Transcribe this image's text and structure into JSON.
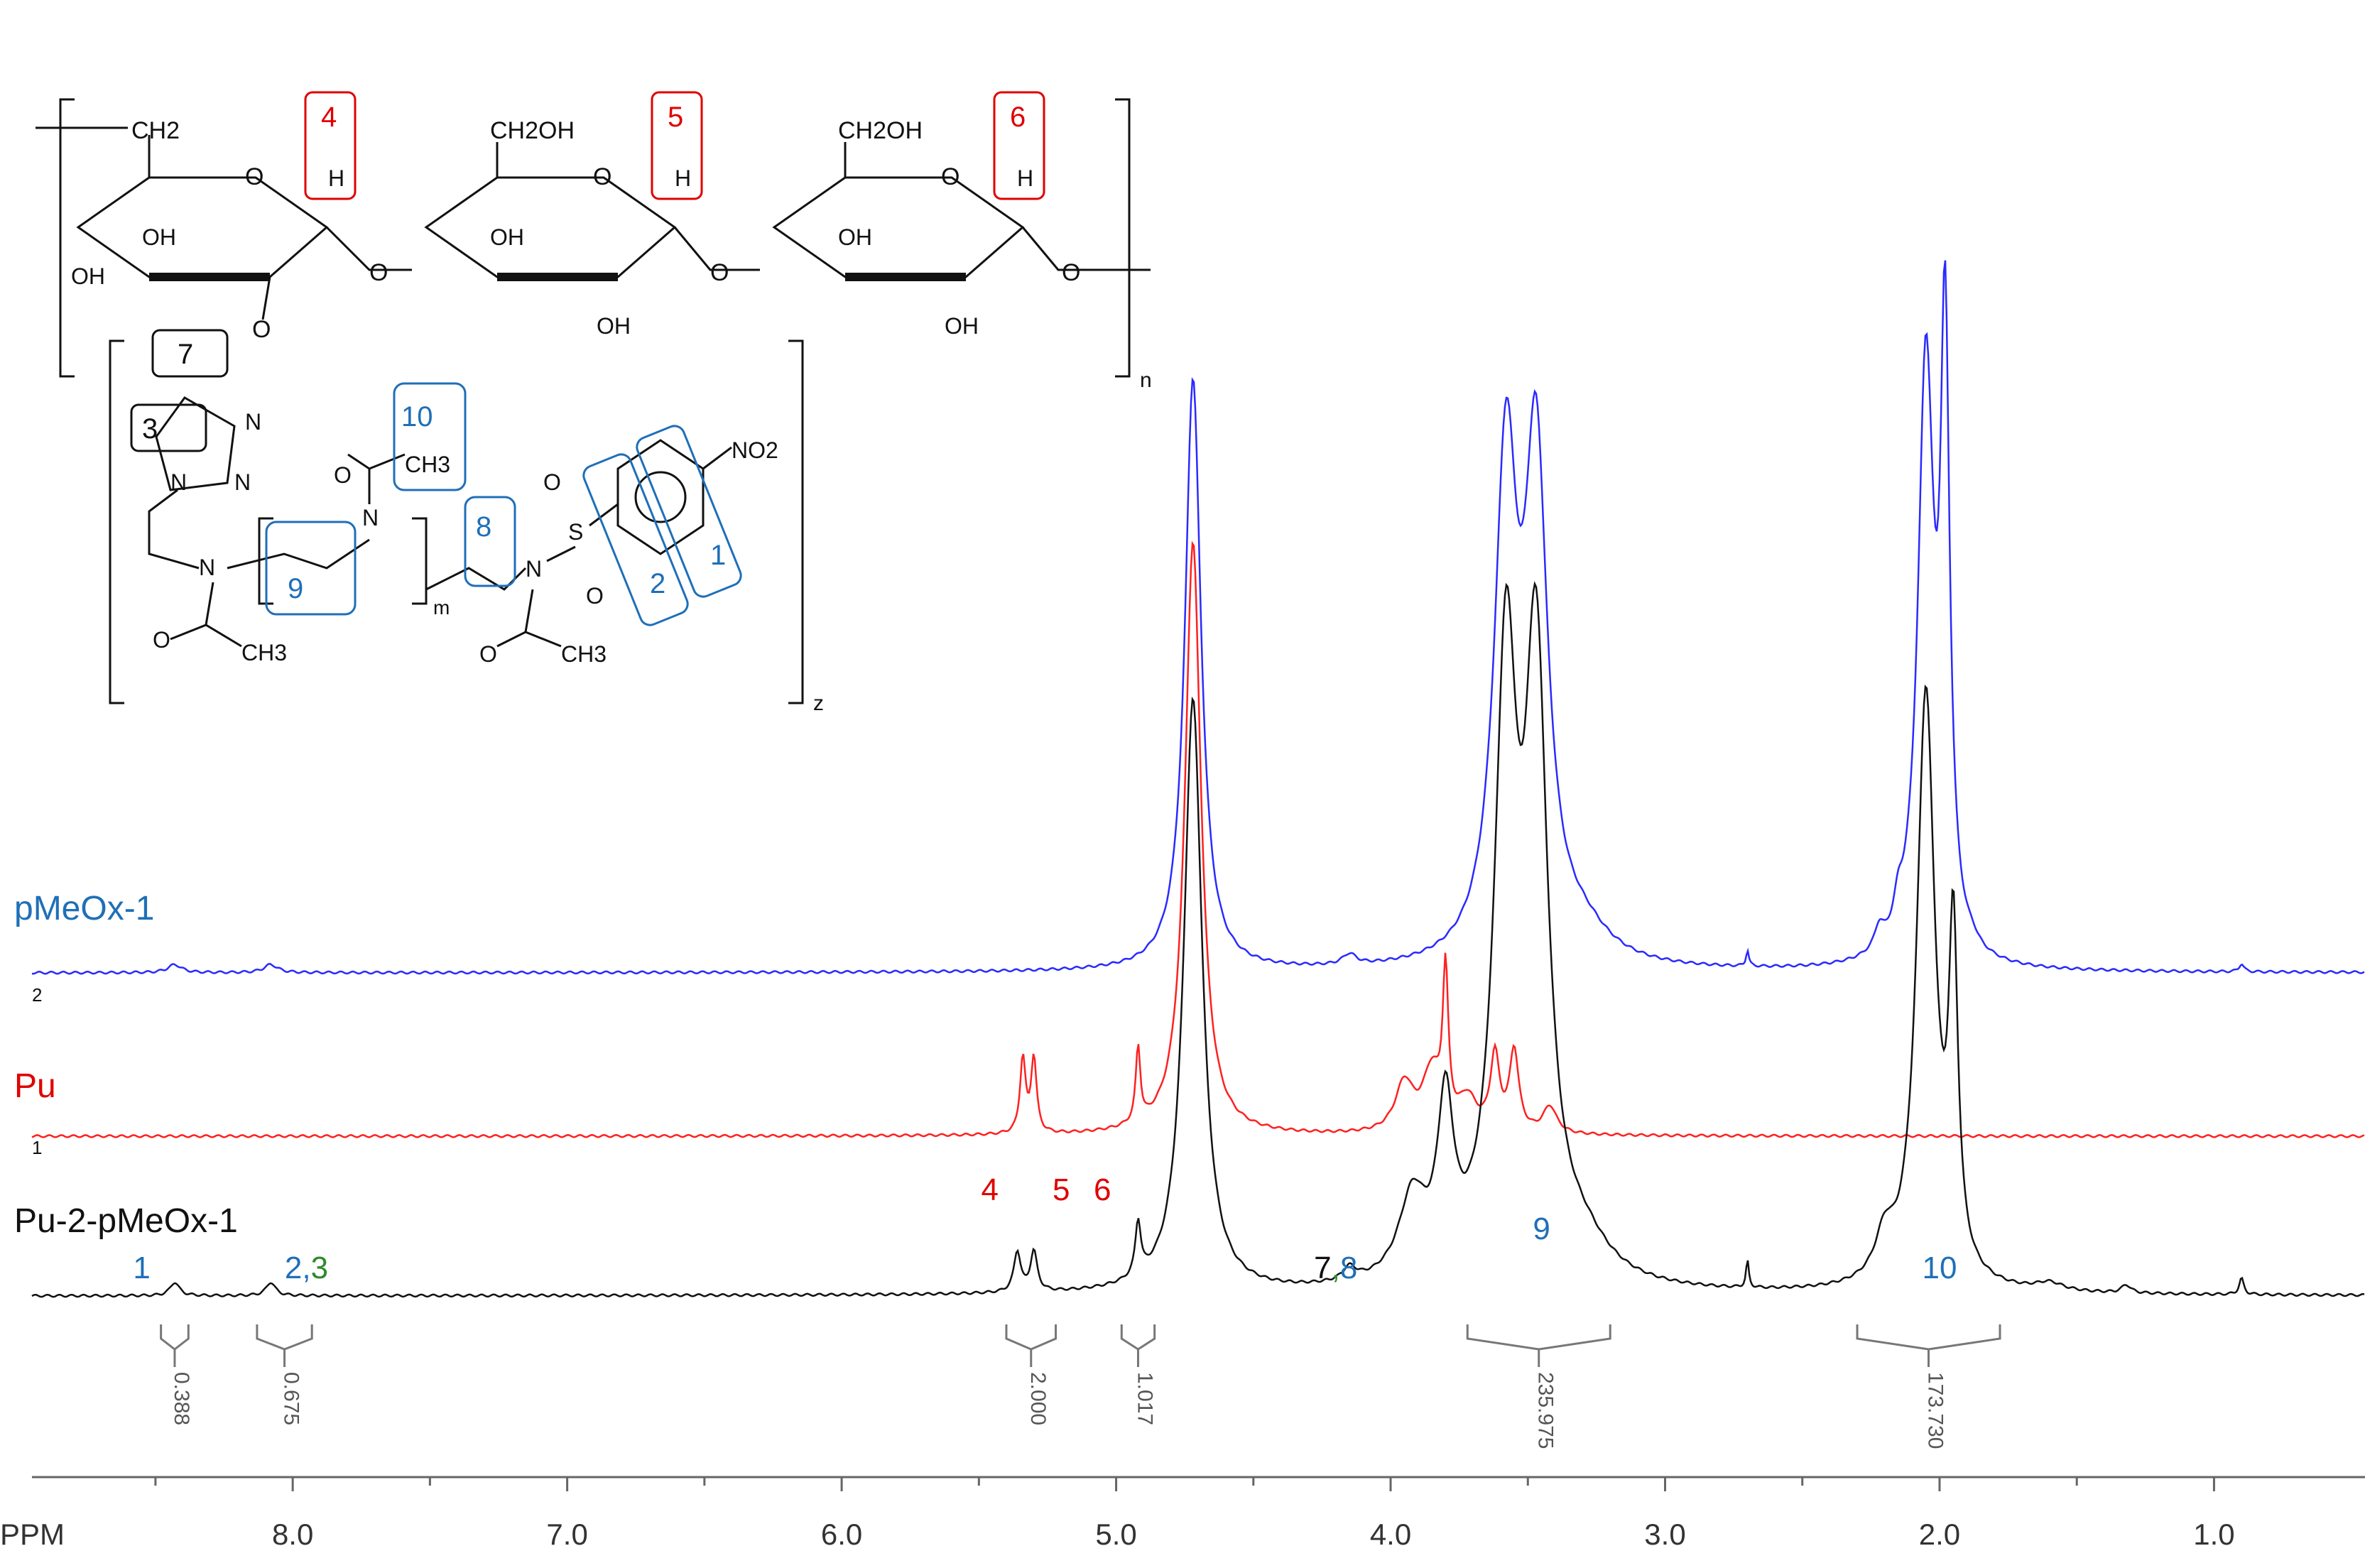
{
  "chart_data": {
    "type": "line",
    "xlabel": "PPM",
    "xlim": [
      8.95,
      0.45
    ],
    "x_reversed": true,
    "x_ticks": [
      {
        "value": 8.0,
        "label": "8.0"
      },
      {
        "value": 7.0,
        "label": "7.0"
      },
      {
        "value": 6.0,
        "label": "6.0"
      },
      {
        "value": 5.0,
        "label": "5.0"
      },
      {
        "value": 4.0,
        "label": "4.0"
      },
      {
        "value": 3.0,
        "label": "3.0"
      },
      {
        "value": 2.0,
        "label": "2.0"
      },
      {
        "value": 1.0,
        "label": "1.0"
      }
    ],
    "grid": false,
    "series": [
      {
        "name": "pMeOx-1",
        "trace_number": "2",
        "color": "#2a2aff",
        "label_color": "#1f6fb8",
        "peaks": [
          {
            "ppm": 8.43,
            "height": 0.03,
            "width": 0.03
          },
          {
            "ppm": 8.08,
            "height": 0.03,
            "width": 0.03
          },
          {
            "ppm": 4.72,
            "height": 2.2,
            "width": 0.035
          },
          {
            "ppm": 4.15,
            "height": 0.04,
            "width": 0.03
          },
          {
            "ppm": 3.58,
            "height": 1.8,
            "width": 0.05
          },
          {
            "ppm": 3.47,
            "height": 1.8,
            "width": 0.05
          },
          {
            "ppm": 3.3,
            "height": 0.1,
            "width": 0.12
          },
          {
            "ppm": 2.7,
            "height": 0.06,
            "width": 0.006
          },
          {
            "ppm": 2.22,
            "height": 0.08,
            "width": 0.02
          },
          {
            "ppm": 2.15,
            "height": 0.1,
            "width": 0.02
          },
          {
            "ppm": 2.05,
            "height": 2.2,
            "width": 0.035
          },
          {
            "ppm": 1.98,
            "height": 2.2,
            "width": 0.02
          },
          {
            "ppm": 1.88,
            "height": 0.02,
            "width": 0.02
          },
          {
            "ppm": 0.9,
            "height": 0.03,
            "width": 0.01
          }
        ]
      },
      {
        "name": "Pu",
        "trace_number": "1",
        "color": "#ff2020",
        "label_color": "#e00000",
        "peaks": [
          {
            "ppm": 5.34,
            "height": 0.28,
            "width": 0.012
          },
          {
            "ppm": 5.3,
            "height": 0.28,
            "width": 0.012
          },
          {
            "ppm": 4.92,
            "height": 0.28,
            "width": 0.01
          },
          {
            "ppm": 4.72,
            "height": 2.2,
            "width": 0.035
          },
          {
            "ppm": 3.95,
            "height": 0.18,
            "width": 0.04
          },
          {
            "ppm": 3.85,
            "height": 0.22,
            "width": 0.04
          },
          {
            "ppm": 3.8,
            "height": 0.55,
            "width": 0.012
          },
          {
            "ppm": 3.72,
            "height": 0.12,
            "width": 0.04
          },
          {
            "ppm": 3.62,
            "height": 0.28,
            "width": 0.02
          },
          {
            "ppm": 3.55,
            "height": 0.3,
            "width": 0.02
          },
          {
            "ppm": 3.42,
            "height": 0.1,
            "width": 0.03
          }
        ]
      },
      {
        "name": "Pu-2-pMeOx-1",
        "trace_number": "",
        "color": "#111111",
        "label_color": "#111111",
        "peaks": [
          {
            "ppm": 8.43,
            "height": 0.05,
            "width": 0.02
          },
          {
            "ppm": 8.08,
            "height": 0.05,
            "width": 0.02
          },
          {
            "ppm": 5.36,
            "height": 0.15,
            "width": 0.015
          },
          {
            "ppm": 5.3,
            "height": 0.15,
            "width": 0.015
          },
          {
            "ppm": 4.92,
            "height": 0.2,
            "width": 0.012
          },
          {
            "ppm": 4.72,
            "height": 2.2,
            "width": 0.04
          },
          {
            "ppm": 4.15,
            "height": 0.05,
            "width": 0.03
          },
          {
            "ppm": 3.92,
            "height": 0.3,
            "width": 0.06
          },
          {
            "ppm": 3.8,
            "height": 0.6,
            "width": 0.035
          },
          {
            "ppm": 3.58,
            "height": 2.2,
            "width": 0.05
          },
          {
            "ppm": 3.47,
            "height": 2.2,
            "width": 0.05
          },
          {
            "ppm": 3.3,
            "height": 0.12,
            "width": 0.12
          },
          {
            "ppm": 2.7,
            "height": 0.1,
            "width": 0.006
          },
          {
            "ppm": 2.2,
            "height": 0.15,
            "width": 0.04
          },
          {
            "ppm": 2.05,
            "height": 2.2,
            "width": 0.04
          },
          {
            "ppm": 1.95,
            "height": 1.2,
            "width": 0.02
          },
          {
            "ppm": 1.6,
            "height": 0.03,
            "width": 0.06
          },
          {
            "ppm": 1.32,
            "height": 0.03,
            "width": 0.02
          },
          {
            "ppm": 0.9,
            "height": 0.06,
            "width": 0.01
          }
        ]
      }
    ],
    "peak_labels": [
      {
        "ppm": 8.55,
        "parts": [
          {
            "text": "1",
            "color": "#1f6fb8"
          }
        ]
      },
      {
        "ppm": 7.95,
        "parts": [
          {
            "text": "2",
            "color": "#1f6fb8"
          },
          {
            "text": ",",
            "color": "#1f6fb8"
          },
          {
            "text": "3",
            "color": "#2e8b2e"
          }
        ]
      },
      {
        "ppm": 5.46,
        "parts": [
          {
            "text": "4",
            "color": "#e00000"
          }
        ]
      },
      {
        "ppm": 5.2,
        "parts": [
          {
            "text": "5",
            "color": "#e00000"
          }
        ]
      },
      {
        "ppm": 5.05,
        "parts": [
          {
            "text": "6",
            "color": "#e00000"
          }
        ]
      },
      {
        "ppm": 4.2,
        "parts": [
          {
            "text": "7",
            "color": "#111111"
          },
          {
            "text": ",",
            "color": "#2e8b2e"
          },
          {
            "text": "8",
            "color": "#1f6fb8"
          }
        ]
      },
      {
        "ppm": 3.45,
        "parts": [
          {
            "text": "9",
            "color": "#1f6fb8"
          }
        ]
      },
      {
        "ppm": 2.0,
        "parts": [
          {
            "text": "10",
            "color": "#1f6fb8"
          }
        ]
      }
    ],
    "integrals": [
      {
        "from": 8.48,
        "to": 8.38,
        "value": "0.388"
      },
      {
        "from": 8.13,
        "to": 7.93,
        "value": "0.675"
      },
      {
        "from": 5.4,
        "to": 5.22,
        "value": "2.000"
      },
      {
        "from": 4.98,
        "to": 4.86,
        "value": "1.017"
      },
      {
        "from": 3.72,
        "to": 3.2,
        "value": "235.975"
      },
      {
        "from": 2.3,
        "to": 1.78,
        "value": "173.730"
      }
    ],
    "structure": {
      "hydrogen_labels": [
        {
          "number": "4",
          "color": "#e00000"
        },
        {
          "number": "5",
          "color": "#e00000"
        },
        {
          "number": "6",
          "color": "#e00000"
        }
      ],
      "proton_boxes": [
        {
          "number": "7",
          "color": "#111111"
        },
        {
          "number": "3",
          "color": "#111111"
        },
        {
          "number": "10",
          "color": "#1f6fb8"
        },
        {
          "number": "9",
          "color": "#1f6fb8"
        },
        {
          "number": "8",
          "color": "#1f6fb8"
        },
        {
          "number": "2",
          "color": "#1f6fb8"
        },
        {
          "number": "1",
          "color": "#1f6fb8"
        }
      ],
      "atom_text": {
        "ch2": "CH2",
        "ch2oh": "CH2OH",
        "oh": "OH",
        "o": "O",
        "h": "H",
        "n": "N",
        "ch3": "CH3",
        "s": "S",
        "no2": "NO2",
        "sub_n": "n",
        "sub_m": "m",
        "sub_z": "z"
      }
    }
  }
}
